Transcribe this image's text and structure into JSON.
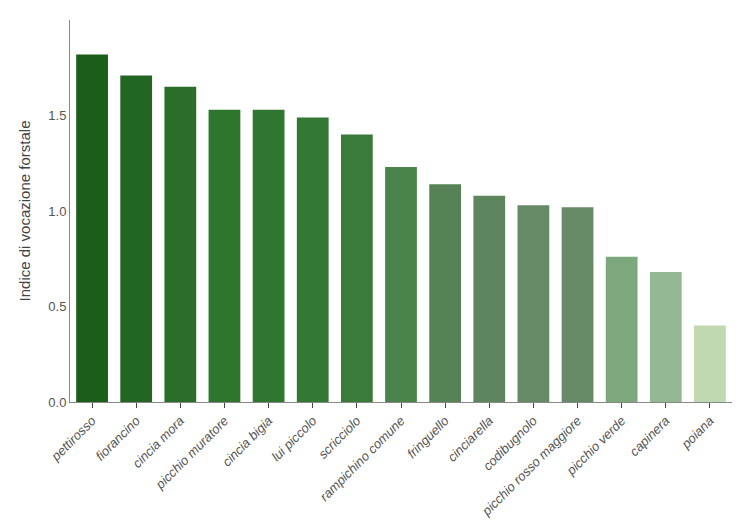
{
  "chart_data": {
    "type": "bar",
    "categories": [
      "pettirosso",
      "fiorancino",
      "cincia mora",
      "picchio muratore",
      "cincia bigia",
      "lui piccolo",
      "scricciolo",
      "rampichino comune",
      "fringuello",
      "cinciarella",
      "codibugnolo",
      "picchio rosso maggiore",
      "picchio verde",
      "capinera",
      "poiana"
    ],
    "values": [
      1.82,
      1.71,
      1.65,
      1.53,
      1.53,
      1.49,
      1.4,
      1.23,
      1.14,
      1.08,
      1.03,
      1.02,
      0.76,
      0.68,
      0.4
    ],
    "colors": [
      "#1a5e1a",
      "#236523",
      "#2a6e2a",
      "#2e762e",
      "#307630",
      "#337833",
      "#3a7a3a",
      "#4a844a",
      "#568256",
      "#5e865e",
      "#668a66",
      "#668a66",
      "#7da87d",
      "#93b893",
      "#c0d9b0"
    ],
    "ylabel": "Indice di vocazione forstale",
    "ylim": [
      0,
      2.0
    ],
    "yticks": [
      {
        "value": 0.0,
        "label": "0.0"
      },
      0.5,
      {
        "value": 1.0,
        "label": "1.0"
      },
      1.5
    ],
    "grid": false
  }
}
